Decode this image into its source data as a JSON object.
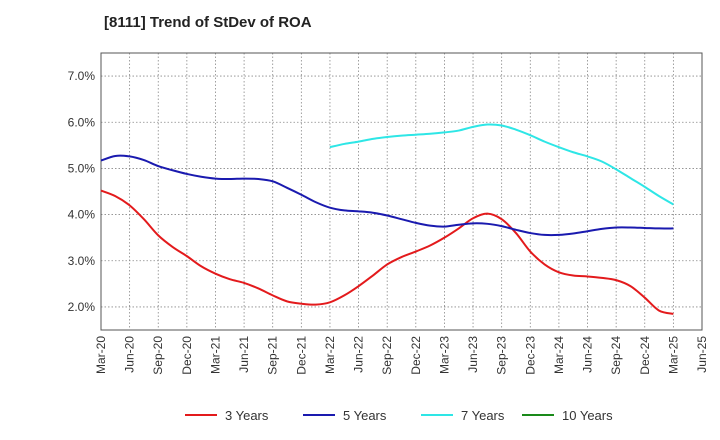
{
  "header": {
    "title": "[8111]  Trend of StDev of ROA"
  },
  "chart_data": {
    "type": "line",
    "title": "[8111]  Trend of StDev of ROA",
    "xlabel": "",
    "ylabel": "",
    "ylim": [
      1.5,
      7.5
    ],
    "y_ticks": [
      "2.0%",
      "3.0%",
      "4.0%",
      "5.0%",
      "6.0%",
      "7.0%"
    ],
    "y_tick_values": [
      2,
      3,
      4,
      5,
      6,
      7
    ],
    "x_labels": [
      "Mar-20",
      "Jun-20",
      "Sep-20",
      "Dec-20",
      "Mar-21",
      "Jun-21",
      "Sep-21",
      "Dec-21",
      "Mar-22",
      "Jun-22",
      "Sep-22",
      "Dec-22",
      "Mar-23",
      "Jun-23",
      "Sep-23",
      "Dec-23",
      "Mar-24",
      "Jun-24",
      "Sep-24",
      "Dec-24",
      "Mar-25",
      "Jun-25"
    ],
    "grid": true,
    "legend_position": "bottom",
    "series": [
      {
        "name": "3 Years",
        "color": "#e31a1c",
        "points": [
          [
            0,
            4.52
          ],
          [
            0.5,
            4.4
          ],
          [
            1,
            4.2
          ],
          [
            1.5,
            3.9
          ],
          [
            2,
            3.55
          ],
          [
            2.5,
            3.3
          ],
          [
            3,
            3.1
          ],
          [
            3.5,
            2.88
          ],
          [
            4,
            2.72
          ],
          [
            4.5,
            2.6
          ],
          [
            5,
            2.52
          ],
          [
            5.5,
            2.4
          ],
          [
            6,
            2.25
          ],
          [
            6.5,
            2.12
          ],
          [
            7,
            2.07
          ],
          [
            7.5,
            2.05
          ],
          [
            8,
            2.1
          ],
          [
            8.5,
            2.25
          ],
          [
            9,
            2.45
          ],
          [
            9.5,
            2.68
          ],
          [
            10,
            2.92
          ],
          [
            10.5,
            3.08
          ],
          [
            11,
            3.2
          ],
          [
            11.5,
            3.33
          ],
          [
            12,
            3.5
          ],
          [
            12.5,
            3.7
          ],
          [
            13,
            3.92
          ],
          [
            13.5,
            4.02
          ],
          [
            14,
            3.9
          ],
          [
            14.5,
            3.6
          ],
          [
            15,
            3.2
          ],
          [
            15.5,
            2.92
          ],
          [
            16,
            2.75
          ],
          [
            16.5,
            2.68
          ],
          [
            17,
            2.66
          ],
          [
            17.5,
            2.63
          ],
          [
            18,
            2.58
          ],
          [
            18.5,
            2.45
          ],
          [
            19,
            2.2
          ],
          [
            19.5,
            1.92
          ],
          [
            20,
            1.85
          ]
        ]
      },
      {
        "name": "5 Years",
        "color": "#1a1aaf",
        "points": [
          [
            0,
            5.17
          ],
          [
            0.5,
            5.27
          ],
          [
            1,
            5.26
          ],
          [
            1.5,
            5.18
          ],
          [
            2,
            5.05
          ],
          [
            2.5,
            4.96
          ],
          [
            3,
            4.88
          ],
          [
            3.5,
            4.82
          ],
          [
            4,
            4.78
          ],
          [
            4.5,
            4.77
          ],
          [
            5,
            4.78
          ],
          [
            5.5,
            4.77
          ],
          [
            6,
            4.72
          ],
          [
            6.5,
            4.58
          ],
          [
            7,
            4.43
          ],
          [
            7.5,
            4.27
          ],
          [
            8,
            4.15
          ],
          [
            8.5,
            4.09
          ],
          [
            9,
            4.07
          ],
          [
            9.5,
            4.04
          ],
          [
            10,
            3.98
          ],
          [
            10.5,
            3.9
          ],
          [
            11,
            3.82
          ],
          [
            11.5,
            3.76
          ],
          [
            12,
            3.74
          ],
          [
            12.5,
            3.78
          ],
          [
            13,
            3.81
          ],
          [
            13.5,
            3.8
          ],
          [
            14,
            3.75
          ],
          [
            14.5,
            3.67
          ],
          [
            15,
            3.6
          ],
          [
            15.5,
            3.56
          ],
          [
            16,
            3.56
          ],
          [
            16.5,
            3.59
          ],
          [
            17,
            3.64
          ],
          [
            17.5,
            3.69
          ],
          [
            18,
            3.72
          ],
          [
            18.5,
            3.72
          ],
          [
            19,
            3.71
          ],
          [
            19.5,
            3.7
          ],
          [
            20,
            3.7
          ]
        ]
      },
      {
        "name": "7 Years",
        "color": "#2ee6e6",
        "points": [
          [
            8,
            5.46
          ],
          [
            8.5,
            5.53
          ],
          [
            9,
            5.58
          ],
          [
            9.5,
            5.64
          ],
          [
            10,
            5.68
          ],
          [
            10.5,
            5.71
          ],
          [
            11,
            5.73
          ],
          [
            11.5,
            5.75
          ],
          [
            12,
            5.78
          ],
          [
            12.5,
            5.82
          ],
          [
            13,
            5.9
          ],
          [
            13.5,
            5.95
          ],
          [
            14,
            5.93
          ],
          [
            14.5,
            5.84
          ],
          [
            15,
            5.72
          ],
          [
            15.5,
            5.58
          ],
          [
            16,
            5.46
          ],
          [
            16.5,
            5.35
          ],
          [
            17,
            5.26
          ],
          [
            17.5,
            5.15
          ],
          [
            18,
            4.98
          ],
          [
            18.5,
            4.79
          ],
          [
            19,
            4.6
          ],
          [
            19.5,
            4.4
          ],
          [
            20,
            4.22
          ]
        ]
      },
      {
        "name": "10 Years",
        "color": "#1a8a1a",
        "points": []
      }
    ]
  }
}
